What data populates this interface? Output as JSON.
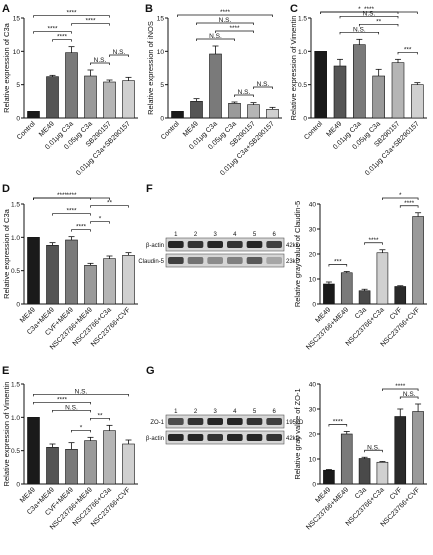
{
  "chart_data": [
    {
      "panel": "A",
      "type": "bar",
      "ylabel": "Relative expression of C3a",
      "ylim": [
        0,
        15
      ],
      "yticks": [
        "0",
        "5",
        "10",
        "15"
      ],
      "categories": [
        "Control",
        "ME49",
        "0.01μg C3a",
        "0.05μg C3a",
        "SB290157",
        "0.01μg C3a+SB290157"
      ],
      "values": [
        1.0,
        6.2,
        9.8,
        6.3,
        5.4,
        5.6
      ],
      "errors": [
        0.0,
        0.2,
        0.9,
        0.9,
        0.3,
        0.5
      ],
      "colors": [
        "#1a1a1a",
        "#555555",
        "#7a7a7a",
        "#9a9a9a",
        "#b5b5b5",
        "#d0d0d0"
      ],
      "annotations": [
        {
          "text": "****",
          "from": 0,
          "to": 4
        },
        {
          "text": "****",
          "from": 0,
          "to": 2
        },
        {
          "text": "****",
          "from": 1,
          "to": 2
        },
        {
          "text": "****",
          "from": 2,
          "to": 4
        },
        {
          "text": "N.S.",
          "from": 3,
          "to": 4
        },
        {
          "text": "N.S.",
          "from": 4,
          "to": 5
        }
      ]
    },
    {
      "panel": "B",
      "type": "bar",
      "ylabel": "Relative expression of iNOS",
      "ylim": [
        0,
        15
      ],
      "yticks": [
        "0",
        "5",
        "10",
        "15"
      ],
      "categories": [
        "Control",
        "ME49",
        "0.01μg C3a",
        "0.05μg C3a",
        "SB290157",
        "0.01μg C3a+SB290157"
      ],
      "values": [
        1.0,
        2.5,
        9.6,
        2.2,
        2.0,
        1.3
      ],
      "errors": [
        0.0,
        0.4,
        1.2,
        0.2,
        0.3,
        0.3
      ],
      "colors": [
        "#1a1a1a",
        "#555555",
        "#7a7a7a",
        "#9a9a9a",
        "#b5b5b5",
        "#d0d0d0"
      ],
      "annotations": [
        {
          "text": "****",
          "from": 0,
          "to": 5
        },
        {
          "text": "N.S.",
          "from": 1,
          "to": 4
        },
        {
          "text": "N.S.",
          "from": 1,
          "to": 3
        },
        {
          "text": "****",
          "from": 2,
          "to": 4
        },
        {
          "text": "N.S.",
          "from": 3,
          "to": 4
        },
        {
          "text": "N.S.",
          "from": 4,
          "to": 5
        }
      ]
    },
    {
      "panel": "C",
      "type": "bar",
      "ylabel": "Relative expression of Vimentin",
      "ylim": [
        0,
        1.5
      ],
      "yticks": [
        "0",
        "0.5",
        "1.0",
        "1.5"
      ],
      "categories": [
        "Control",
        "ME49",
        "0.01μg C3a",
        "0.05μg C3a",
        "SB290157",
        "0.01μg C3a+SB290157"
      ],
      "values": [
        1.0,
        0.78,
        1.1,
        0.63,
        0.83,
        0.5
      ],
      "errors": [
        0.0,
        0.1,
        0.08,
        0.1,
        0.05,
        0.03
      ],
      "colors": [
        "#1a1a1a",
        "#555555",
        "#7a7a7a",
        "#9a9a9a",
        "#b5b5b5",
        "#d0d0d0"
      ],
      "annotations": [
        {
          "text": "****",
          "from": 0,
          "to": 5
        },
        {
          "text": "*",
          "from": 0,
          "to": 4
        },
        {
          "text": "N.S.",
          "from": 1,
          "to": 4
        },
        {
          "text": "N.S.",
          "from": 1,
          "to": 3
        },
        {
          "text": "**",
          "from": 2,
          "to": 4
        },
        {
          "text": "***",
          "from": 4,
          "to": 5
        }
      ]
    },
    {
      "panel": "D",
      "type": "bar",
      "ylabel": "Relative expression of C3a",
      "ylim": [
        0,
        1.5
      ],
      "yticks": [
        "0",
        "0.5",
        "1.0",
        "1.5"
      ],
      "categories": [
        "ME49",
        "C3a+ME49",
        "CVF+ME49",
        "NSC23766+ME49",
        "NSC23766+C3a",
        "NSC23766+CVF"
      ],
      "values": [
        1.0,
        0.88,
        0.96,
        0.58,
        0.68,
        0.73
      ],
      "errors": [
        0.0,
        0.04,
        0.05,
        0.03,
        0.04,
        0.04
      ],
      "colors": [
        "#1a1a1a",
        "#555555",
        "#7a7a7a",
        "#9a9a9a",
        "#b5b5b5",
        "#d0d0d0"
      ],
      "annotations": [
        {
          "text": "****",
          "from": 0,
          "to": 3
        },
        {
          "text": "****",
          "from": 0,
          "to": 4
        },
        {
          "text": "****",
          "from": 1,
          "to": 3
        },
        {
          "text": "****",
          "from": 2,
          "to": 3
        },
        {
          "text": "**",
          "from": 3,
          "to": 5
        },
        {
          "text": "*",
          "from": 3,
          "to": 4
        }
      ]
    },
    {
      "panel": "E",
      "type": "bar",
      "ylabel": "Relative expression of Vimentin",
      "ylim": [
        0,
        1.5
      ],
      "yticks": [
        "0",
        "0.5",
        "1.0",
        "1.5"
      ],
      "categories": [
        "ME49",
        "C3a+ME49",
        "CVF+ME49",
        "NSC23766+ME49",
        "NSC23766+C3a",
        "NSC23766+CVF"
      ],
      "values": [
        1.0,
        0.55,
        0.52,
        0.65,
        0.8,
        0.6
      ],
      "errors": [
        0.0,
        0.05,
        0.1,
        0.05,
        0.08,
        0.06
      ],
      "colors": [
        "#1a1a1a",
        "#555555",
        "#7a7a7a",
        "#9a9a9a",
        "#b5b5b5",
        "#d0d0d0"
      ],
      "annotations": [
        {
          "text": "****",
          "from": 0,
          "to": 3
        },
        {
          "text": "N.S.",
          "from": 0,
          "to": 5
        },
        {
          "text": "N.S.",
          "from": 1,
          "to": 3
        },
        {
          "text": "*",
          "from": 2,
          "to": 3
        },
        {
          "text": "**",
          "from": 3,
          "to": 4
        }
      ]
    },
    {
      "panel": "F",
      "type": "bar",
      "ylabel": "Relative gray value of Claudin-5",
      "ylim": [
        0,
        40
      ],
      "yticks": [
        "0",
        "10",
        "20",
        "30",
        "40"
      ],
      "categories": [
        "ME49",
        "NSC23766+ME49",
        "C3a",
        "NSC23766+C3a",
        "CVF",
        "NSC23766+CVF"
      ],
      "values": [
        8.0,
        12.5,
        5.3,
        20.5,
        7.0,
        35.0
      ],
      "errors": [
        0.8,
        0.5,
        0.6,
        1.2,
        0.3,
        1.5
      ],
      "colors": [
        "#1a1a1a",
        "#7a7a7a",
        "#4a4a4a",
        "#d0d0d0",
        "#2a2a2a",
        "#9a9a9a"
      ],
      "annotations": [
        {
          "text": "***",
          "from": 0,
          "to": 1
        },
        {
          "text": "****",
          "from": 2,
          "to": 3
        },
        {
          "text": "*",
          "from": 3,
          "to": 5
        },
        {
          "text": "****",
          "from": 4,
          "to": 5
        }
      ]
    },
    {
      "panel": "G",
      "type": "bar",
      "ylabel": "Relative gray value of ZO-1",
      "ylim": [
        0,
        40
      ],
      "yticks": [
        "0",
        "10",
        "20",
        "30",
        "40"
      ],
      "categories": [
        "ME49",
        "NSC23766+ME49",
        "C3a",
        "NSC23766+C3a",
        "CVF",
        "NSC23766+CVF"
      ],
      "values": [
        5.5,
        20.0,
        10.2,
        8.7,
        27.0,
        29.0
      ],
      "errors": [
        0.3,
        1.0,
        0.5,
        0.3,
        3.0,
        3.0
      ],
      "colors": [
        "#1a1a1a",
        "#7a7a7a",
        "#4a4a4a",
        "#d0d0d0",
        "#2a2a2a",
        "#9a9a9a"
      ],
      "annotations": [
        {
          "text": "****",
          "from": 0,
          "to": 1
        },
        {
          "text": "N.S.",
          "from": 2,
          "to": 3
        },
        {
          "text": "****",
          "from": 3,
          "to": 5
        },
        {
          "text": "N.S.",
          "from": 4,
          "to": 5
        }
      ]
    }
  ],
  "panel_letters": {
    "A": "A",
    "B": "B",
    "C": "C",
    "D": "D",
    "E": "E",
    "F": "F",
    "G": "G"
  },
  "blot_F": {
    "lane_numbers": [
      "1",
      "2",
      "3",
      "4",
      "5",
      "6"
    ],
    "rows": [
      {
        "label": "β-actin",
        "size": "42kD"
      },
      {
        "label": "Claudin-5",
        "size": "23kD"
      }
    ],
    "intensities": [
      [
        0.85,
        0.8,
        0.85,
        0.8,
        0.85,
        0.75
      ],
      [
        0.75,
        0.55,
        0.45,
        0.5,
        0.65,
        0.35
      ]
    ]
  },
  "blot_G": {
    "lane_numbers": [
      "1",
      "2",
      "3",
      "4",
      "5",
      "6"
    ],
    "rows": [
      {
        "label": "ZO-1",
        "size": "195kD"
      },
      {
        "label": "β-actin",
        "size": "42kD"
      }
    ],
    "intensities": [
      [
        0.7,
        0.8,
        0.85,
        0.85,
        0.8,
        0.75
      ],
      [
        0.85,
        0.85,
        0.8,
        0.85,
        0.85,
        0.8
      ]
    ]
  }
}
